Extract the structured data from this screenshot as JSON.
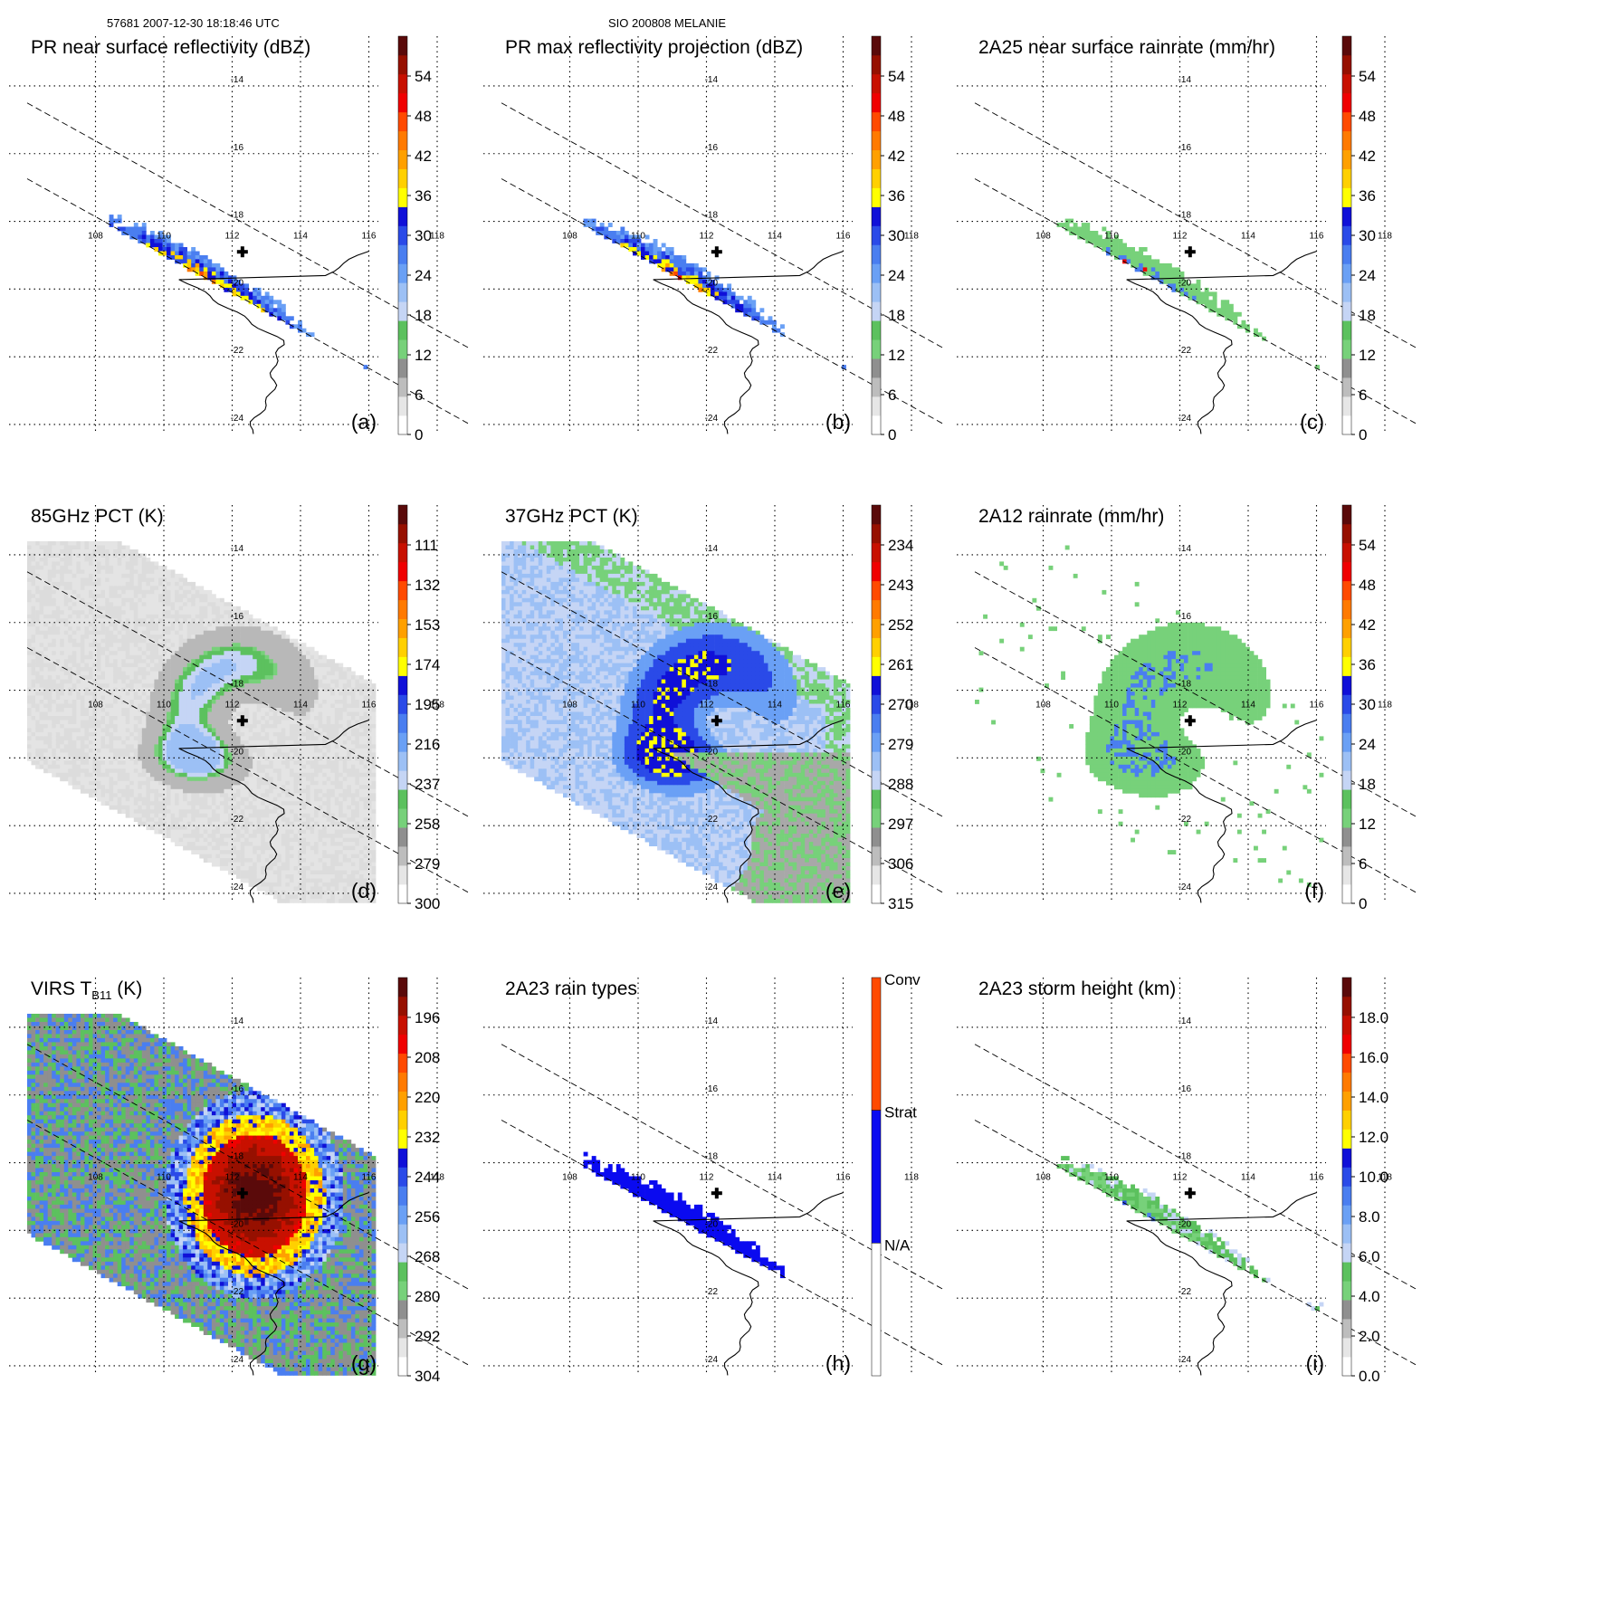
{
  "header": {
    "orbit_time": "57681 2007-12-30 18:18:46 UTC",
    "storm": "SIO 200808 MELANIE"
  },
  "map": {
    "lon_ticks": [
      "108",
      "110",
      "112",
      "114",
      "116",
      "118"
    ],
    "lat_ticks": [
      "-14",
      "-16",
      "-18",
      "-20",
      "-22",
      "-24"
    ],
    "storm_center_marker": "cross-marker",
    "grid": "dotted"
  },
  "chart_data": [
    {
      "type": "heatmap",
      "id": "a",
      "panel_label": "(a)",
      "title": "PR near surface reflectivity (dBZ)",
      "colorbar_ticks": [
        "54",
        "48",
        "42",
        "36",
        "30",
        "24",
        "18",
        "12",
        "6",
        "0"
      ],
      "colorbar_range": [
        0,
        60
      ],
      "feature": "pr_swath"
    },
    {
      "type": "heatmap",
      "id": "b",
      "panel_label": "(b)",
      "title": "PR max reflectivity projection (dBZ)",
      "colorbar_ticks": [
        "54",
        "48",
        "42",
        "36",
        "30",
        "24",
        "18",
        "12",
        "6",
        "0"
      ],
      "colorbar_range": [
        0,
        60
      ],
      "feature": "pr_swath"
    },
    {
      "type": "heatmap",
      "id": "c",
      "panel_label": "(c)",
      "title": "2A25 near surface rainrate (mm/hr)",
      "colorbar_ticks": [
        "54",
        "48",
        "42",
        "36",
        "30",
        "24",
        "18",
        "12",
        "6",
        "0"
      ],
      "colorbar_range": [
        0,
        60
      ],
      "feature": "pr_rain"
    },
    {
      "type": "heatmap",
      "id": "d",
      "panel_label": "(d)",
      "title": "85GHz PCT (K)",
      "colorbar_ticks": [
        "111",
        "132",
        "153",
        "174",
        "195",
        "216",
        "237",
        "258",
        "279",
        "300"
      ],
      "colorbar_range": [
        300,
        90
      ],
      "feature": "pct85"
    },
    {
      "type": "heatmap",
      "id": "e",
      "panel_label": "(e)",
      "title": "37GHz PCT (K)",
      "colorbar_ticks": [
        "234",
        "243",
        "252",
        "261",
        "270",
        "279",
        "288",
        "297",
        "306",
        "315"
      ],
      "colorbar_range": [
        315,
        225
      ],
      "feature": "pct37"
    },
    {
      "type": "heatmap",
      "id": "f",
      "panel_label": "(f)",
      "title": "2A12 rainrate (mm/hr)",
      "colorbar_ticks": [
        "54",
        "48",
        "42",
        "36",
        "30",
        "24",
        "18",
        "12",
        "6",
        "0"
      ],
      "colorbar_range": [
        0,
        60
      ],
      "feature": "tmi_rain"
    },
    {
      "type": "heatmap",
      "id": "g",
      "panel_label": "(g)",
      "title_main": "VIRS T",
      "title_sub": "B11",
      "title_unit": " (K)",
      "colorbar_ticks": [
        "196",
        "208",
        "220",
        "232",
        "244",
        "256",
        "268",
        "280",
        "292",
        "304"
      ],
      "colorbar_range": [
        304,
        184
      ],
      "feature": "virs"
    },
    {
      "type": "heatmap",
      "id": "h",
      "panel_label": "(h)",
      "title": "2A23 rain types",
      "colorbar_categories": [
        "Conv",
        "Strat",
        "N/A"
      ],
      "feature": "rain_types"
    },
    {
      "type": "heatmap",
      "id": "i",
      "panel_label": "(i)",
      "title": "2A23 storm height (km)",
      "colorbar_ticks": [
        "18.0",
        "16.0",
        "14.0",
        "12.0",
        "10.0",
        "8.0",
        "6.0",
        "4.0",
        "2.0",
        "0.0"
      ],
      "colorbar_range": [
        0,
        20
      ],
      "feature": "storm_height"
    }
  ],
  "colors": {
    "colorbar": [
      "#ffffff",
      "#e6e6e6",
      "#bdbdbd",
      "#8f8f8f",
      "#77d17a",
      "#5cc15e",
      "#c5d5f5",
      "#9cc0f5",
      "#6aa0f5",
      "#4a7ef0",
      "#2a4ae8",
      "#1010d8",
      "#ffff00",
      "#ffd000",
      "#ffa000",
      "#ff7a00",
      "#ff4a00",
      "#f00000",
      "#c81000",
      "#961000",
      "#5a0a0a"
    ],
    "rain_type": [
      "#ffffff",
      "#0a0af0",
      "#ff4a00"
    ],
    "outline": "#000000"
  }
}
